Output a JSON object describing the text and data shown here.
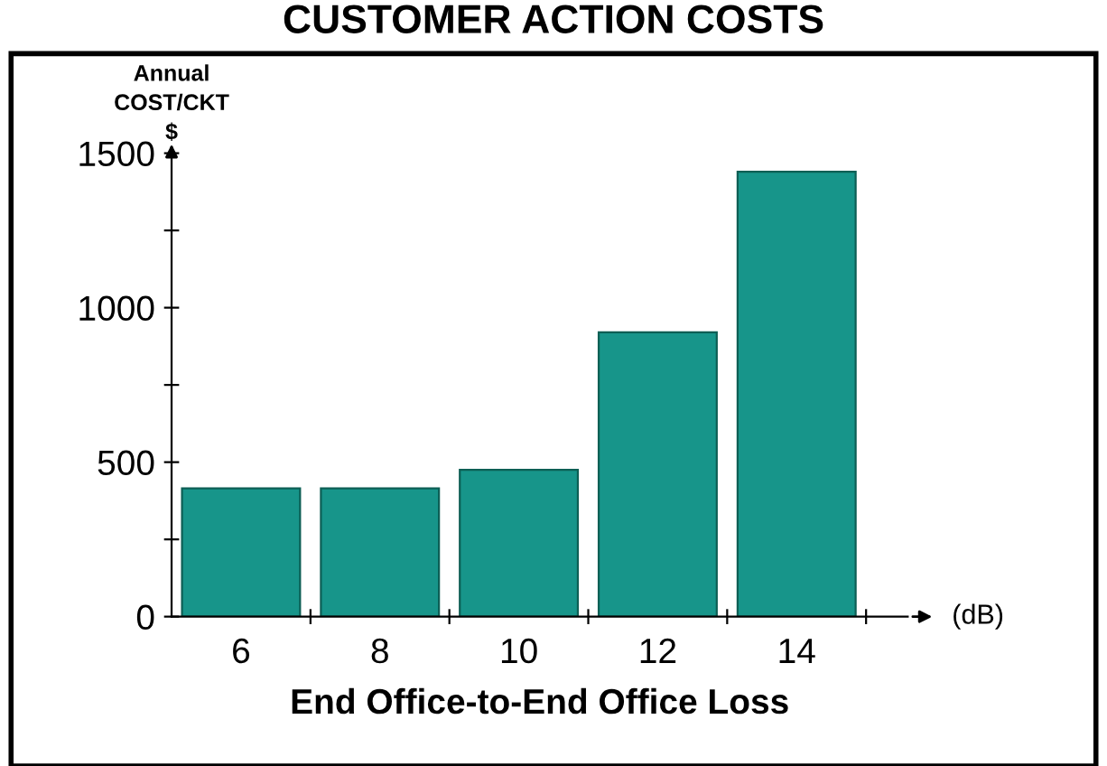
{
  "chart_data": {
    "type": "bar",
    "title": "CUSTOMER ACTION COSTS",
    "ylabel": "Annual\nCOST/CKT\n$",
    "xlabel": "End Office-to-End Office Loss",
    "annotations": [
      "(dB)"
    ],
    "categories": [
      "6",
      "8",
      "10",
      "12",
      "14"
    ],
    "values": [
      415,
      415,
      475,
      920,
      1440
    ],
    "color": "#17958a",
    "ylim": [
      0,
      1500
    ],
    "yticks": [
      0,
      {
        "value": 250,
        "label": null
      },
      500,
      {
        "value": 750,
        "label": null
      },
      1000,
      {
        "value": 1250,
        "label": null
      },
      1500
    ],
    "grid": false
  }
}
